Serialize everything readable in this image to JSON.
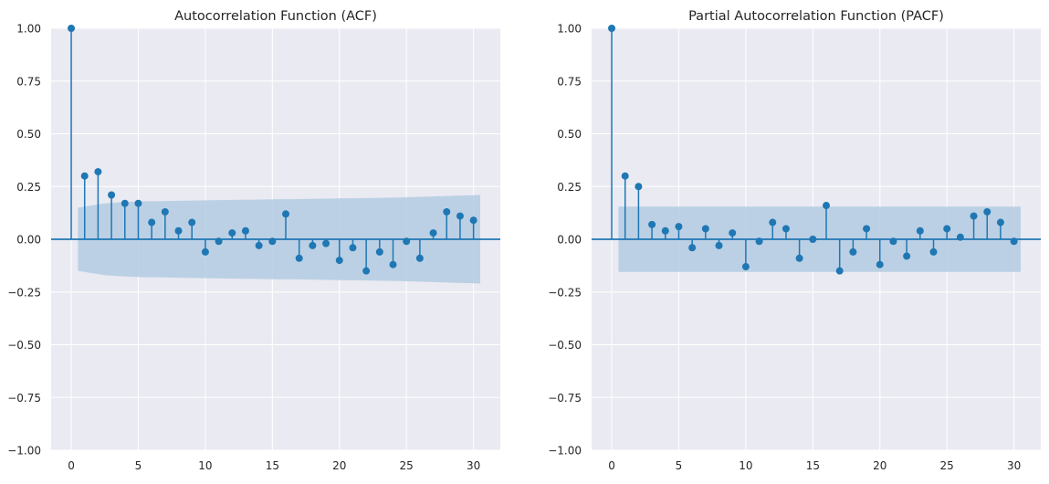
{
  "chart_data": [
    {
      "type": "stem",
      "title": "Autocorrelation Function (ACF)",
      "xlabel": "",
      "ylabel": "",
      "xlim": [
        -1.5,
        32
      ],
      "ylim": [
        -1.0,
        1.0
      ],
      "xticks": [
        0,
        5,
        10,
        15,
        20,
        25,
        30
      ],
      "yticks": [
        -1.0,
        -0.75,
        -0.5,
        -0.25,
        0.0,
        0.25,
        0.5,
        0.75,
        1.0
      ],
      "ytick_labels": [
        "−1.00",
        "−0.75",
        "−0.50",
        "−0.25",
        "0.00",
        "0.25",
        "0.50",
        "0.75",
        "1.00"
      ],
      "grid": true,
      "lags": [
        0,
        1,
        2,
        3,
        4,
        5,
        6,
        7,
        8,
        9,
        10,
        11,
        12,
        13,
        14,
        15,
        16,
        17,
        18,
        19,
        20,
        21,
        22,
        23,
        24,
        25,
        26,
        27,
        28,
        29,
        30
      ],
      "values": [
        1.0,
        0.3,
        0.32,
        0.21,
        0.17,
        0.17,
        0.08,
        0.13,
        0.04,
        0.08,
        -0.06,
        -0.01,
        0.03,
        0.04,
        -0.03,
        -0.01,
        0.12,
        -0.09,
        -0.03,
        -0.02,
        -0.1,
        -0.04,
        -0.15,
        -0.06,
        -0.12,
        -0.01,
        -0.09,
        0.03,
        0.13,
        0.11,
        0.09
      ],
      "confidence_band": {
        "x_start": 0.5,
        "x_end": 30.5,
        "upper": [
          0.15,
          0.16,
          0.17,
          0.175,
          0.178,
          0.18,
          0.18,
          0.182,
          0.183,
          0.184,
          0.185,
          0.186,
          0.187,
          0.188,
          0.189,
          0.19,
          0.19,
          0.191,
          0.192,
          0.193,
          0.194,
          0.195,
          0.196,
          0.197,
          0.198,
          0.2,
          0.202,
          0.204,
          0.206,
          0.208,
          0.21
        ]
      },
      "colors": {
        "stem": "#1f77b4",
        "band": "#b3cbe2",
        "background": "#eaeaf2",
        "grid": "#ffffff"
      }
    },
    {
      "type": "stem",
      "title": "Partial Autocorrelation Function (PACF)",
      "xlabel": "",
      "ylabel": "",
      "xlim": [
        -1.5,
        32
      ],
      "ylim": [
        -1.0,
        1.0
      ],
      "xticks": [
        0,
        5,
        10,
        15,
        20,
        25,
        30
      ],
      "yticks": [
        -1.0,
        -0.75,
        -0.5,
        -0.25,
        0.0,
        0.25,
        0.5,
        0.75,
        1.0
      ],
      "ytick_labels": [
        "−1.00",
        "−0.75",
        "−0.50",
        "−0.25",
        "0.00",
        "0.25",
        "0.50",
        "0.75",
        "1.00"
      ],
      "grid": true,
      "lags": [
        0,
        1,
        2,
        3,
        4,
        5,
        6,
        7,
        8,
        9,
        10,
        11,
        12,
        13,
        14,
        15,
        16,
        17,
        18,
        19,
        20,
        21,
        22,
        23,
        24,
        25,
        26,
        27,
        28,
        29,
        30
      ],
      "values": [
        1.0,
        0.3,
        0.25,
        0.07,
        0.04,
        0.06,
        -0.04,
        0.05,
        -0.03,
        0.03,
        -0.13,
        -0.01,
        0.08,
        0.05,
        -0.09,
        0.0,
        0.16,
        -0.15,
        -0.06,
        0.05,
        -0.12,
        -0.01,
        -0.08,
        0.04,
        -0.06,
        0.05,
        0.01,
        0.11,
        0.13,
        0.08,
        -0.01
      ],
      "confidence_band": {
        "x_start": 0.5,
        "x_end": 30.5,
        "upper": [
          0.155,
          0.155,
          0.155,
          0.155,
          0.155,
          0.155,
          0.155,
          0.155,
          0.155,
          0.155,
          0.155,
          0.155,
          0.155,
          0.155,
          0.155,
          0.155,
          0.155,
          0.155,
          0.155,
          0.155,
          0.155,
          0.155,
          0.155,
          0.155,
          0.155,
          0.155,
          0.155,
          0.155,
          0.155,
          0.155,
          0.155
        ]
      },
      "colors": {
        "stem": "#1f77b4",
        "band": "#b3cbe2",
        "background": "#eaeaf2",
        "grid": "#ffffff"
      }
    }
  ]
}
